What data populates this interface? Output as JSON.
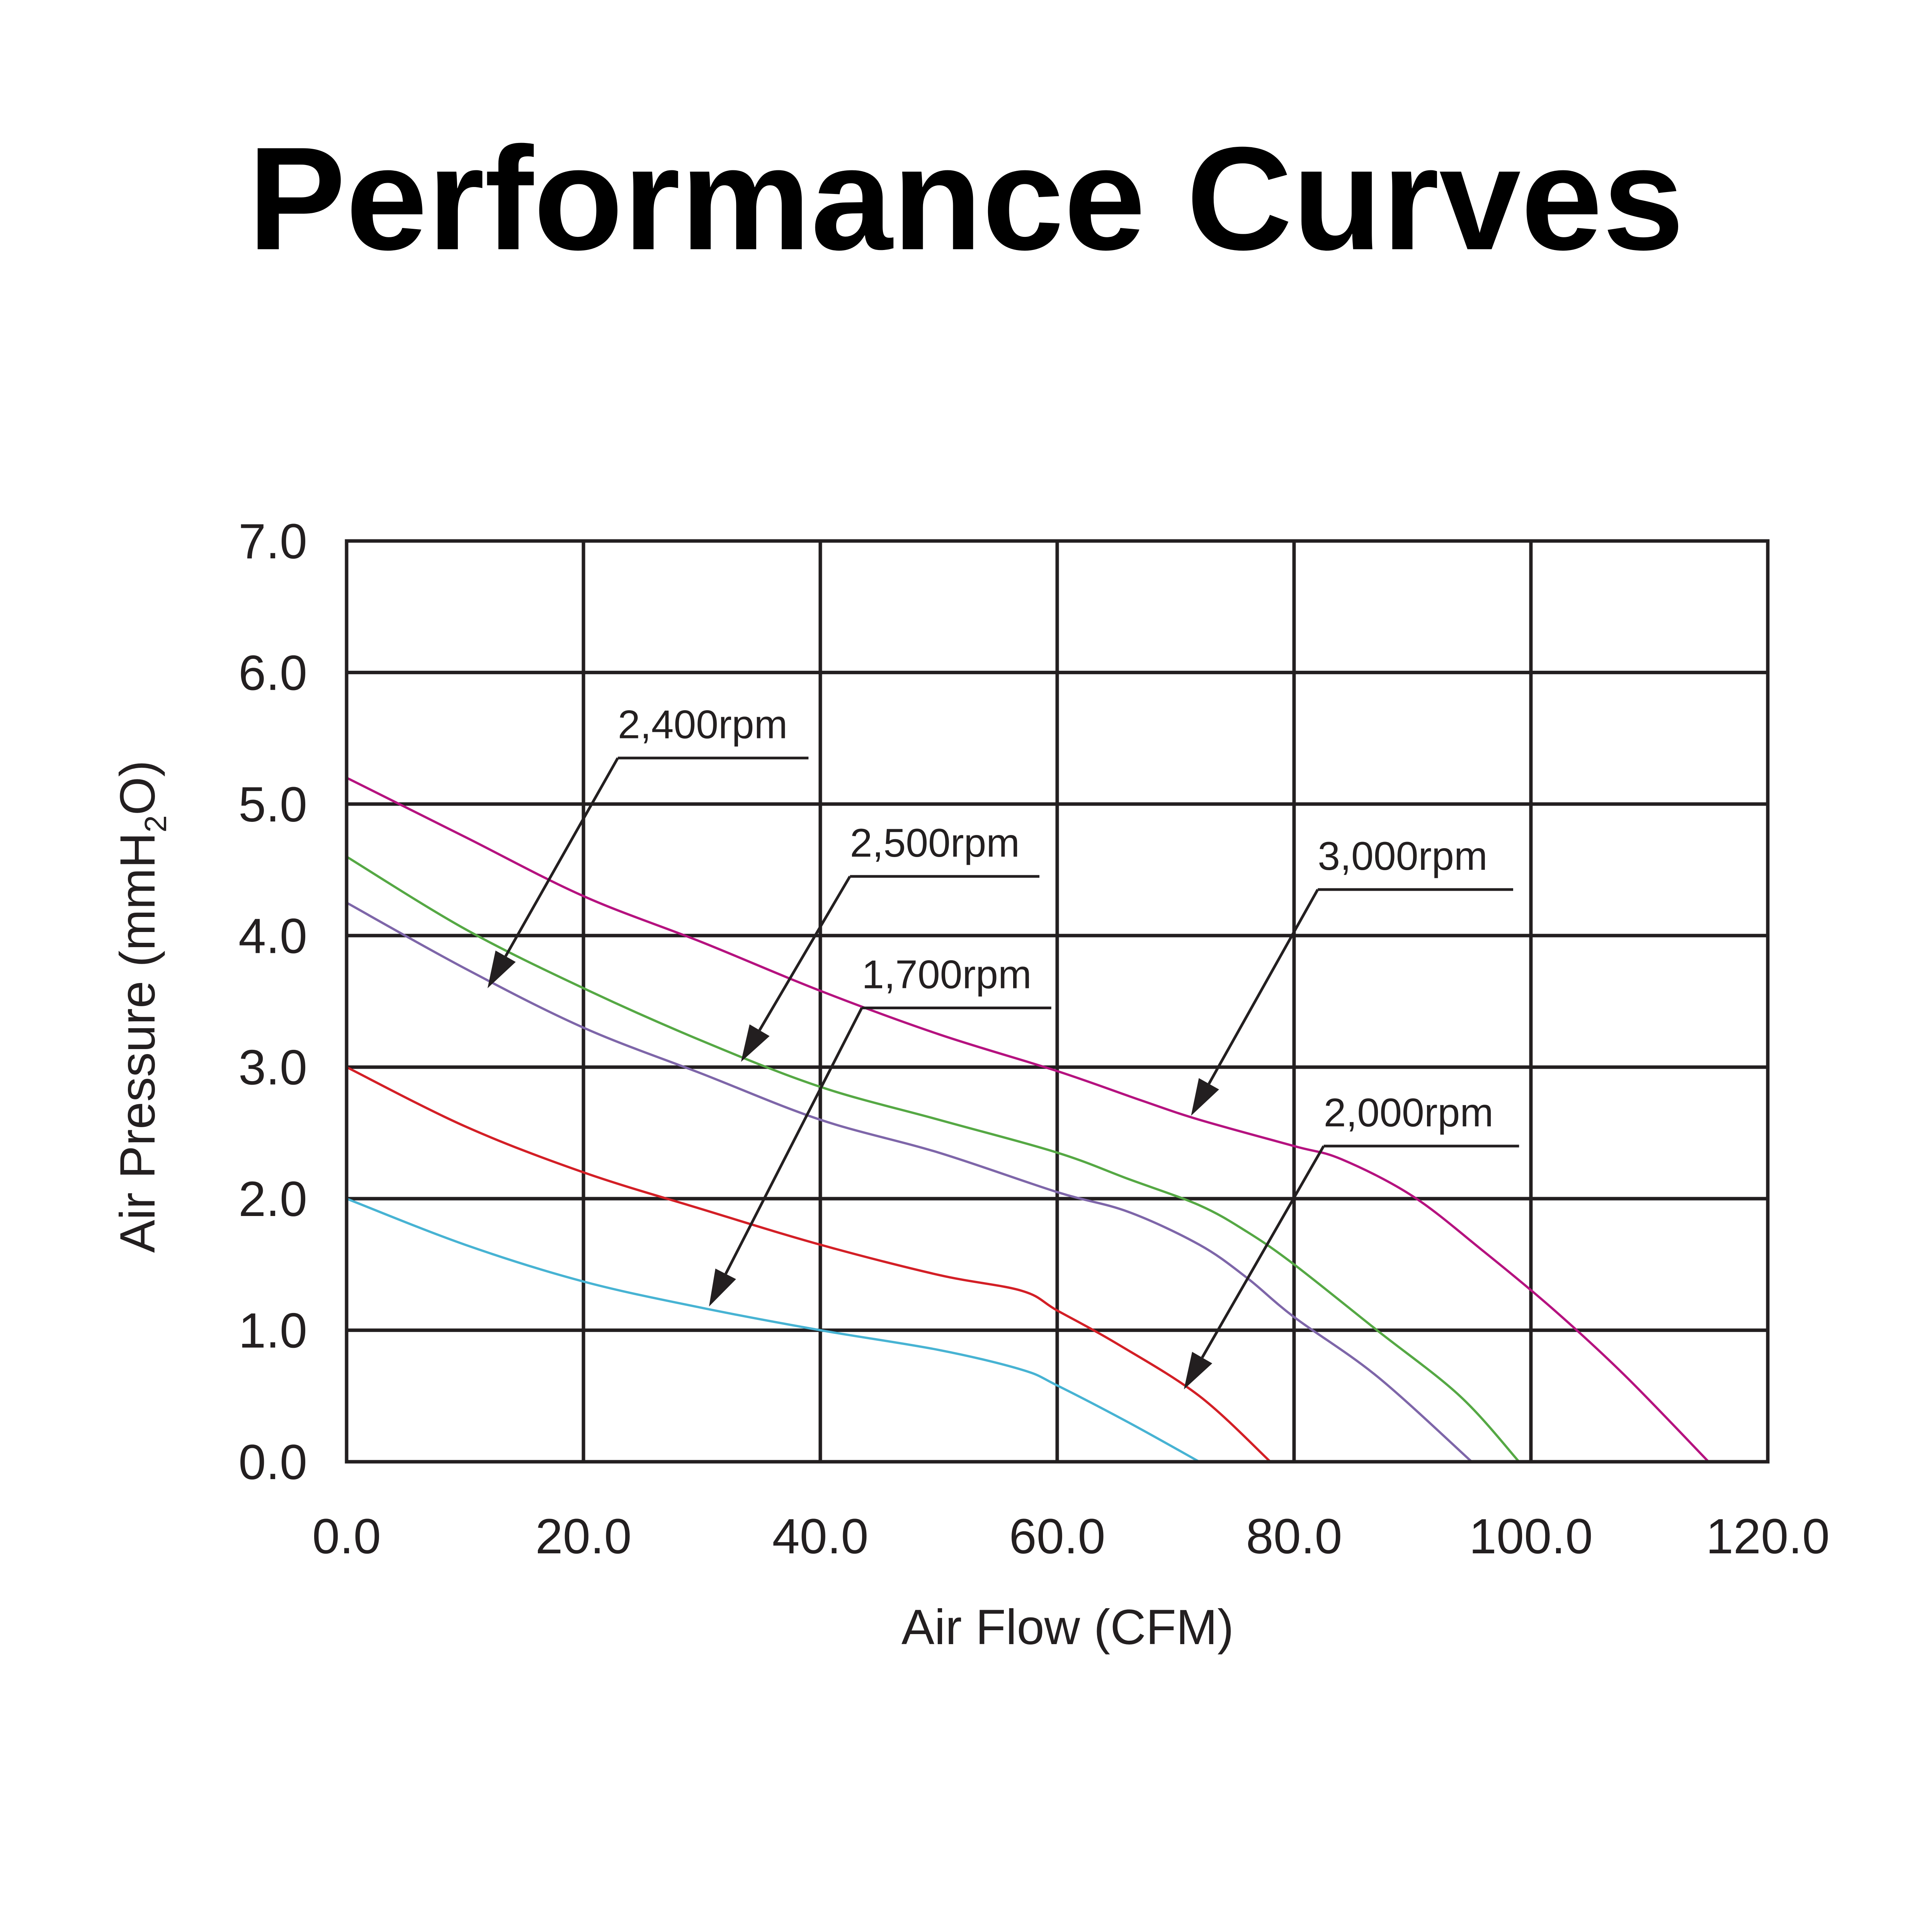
{
  "chart_data": {
    "type": "line",
    "title": "Performance Curves",
    "xlabel": "Air Flow (CFM)",
    "ylabel": {
      "prefix": "Air Pressure (mmH",
      "subscript": "2",
      "suffix": "O)"
    },
    "xlim": [
      0,
      120
    ],
    "ylim": [
      0,
      7
    ],
    "grid": true,
    "x_ticks": [
      {
        "value": 0,
        "label": "0.0"
      },
      {
        "value": 20,
        "label": "20.0"
      },
      {
        "value": 40,
        "label": "40.0"
      },
      {
        "value": 60,
        "label": "60.0"
      },
      {
        "value": 80,
        "label": "80.0"
      },
      {
        "value": 100,
        "label": "100.0"
      },
      {
        "value": 120,
        "label": "120.0"
      }
    ],
    "y_ticks": [
      {
        "value": 0,
        "label": "0.0"
      },
      {
        "value": 1,
        "label": "1.0"
      },
      {
        "value": 2,
        "label": "2.0"
      },
      {
        "value": 3,
        "label": "3.0"
      },
      {
        "value": 4,
        "label": "4.0"
      },
      {
        "value": 5,
        "label": "5.0"
      },
      {
        "value": 6,
        "label": "6.0"
      },
      {
        "value": 7,
        "label": "7.0"
      }
    ],
    "series": [
      {
        "name": "3,000rpm",
        "color": "#b5127f",
        "points": [
          [
            0,
            5.2
          ],
          [
            10,
            4.75
          ],
          [
            20,
            4.3
          ],
          [
            30,
            3.95
          ],
          [
            40,
            3.58
          ],
          [
            50,
            3.25
          ],
          [
            60,
            2.97
          ],
          [
            67,
            2.75
          ],
          [
            72,
            2.6
          ],
          [
            80,
            2.4
          ],
          [
            84,
            2.3
          ],
          [
            90,
            2.02
          ],
          [
            96,
            1.6
          ],
          [
            102,
            1.15
          ],
          [
            108,
            0.65
          ],
          [
            115,
            0.0
          ]
        ]
      },
      {
        "name": "2,500rpm",
        "color": "#55a844",
        "points": [
          [
            0,
            4.6
          ],
          [
            10,
            4.05
          ],
          [
            20,
            3.6
          ],
          [
            30,
            3.2
          ],
          [
            40,
            2.85
          ],
          [
            50,
            2.6
          ],
          [
            60,
            2.35
          ],
          [
            66,
            2.15
          ],
          [
            72,
            1.95
          ],
          [
            76,
            1.75
          ],
          [
            80,
            1.5
          ],
          [
            87,
            1.0
          ],
          [
            94,
            0.5
          ],
          [
            99,
            0.0
          ]
        ]
      },
      {
        "name": "2,400rpm",
        "color": "#7e66a9",
        "points": [
          [
            0,
            4.25
          ],
          [
            10,
            3.75
          ],
          [
            20,
            3.3
          ],
          [
            30,
            2.95
          ],
          [
            40,
            2.6
          ],
          [
            50,
            2.35
          ],
          [
            60,
            2.05
          ],
          [
            66,
            1.9
          ],
          [
            72,
            1.65
          ],
          [
            76,
            1.4
          ],
          [
            80,
            1.1
          ],
          [
            87,
            0.65
          ],
          [
            95,
            0.0
          ]
        ]
      },
      {
        "name": "2,000rpm",
        "color": "#d31f26",
        "points": [
          [
            0,
            3.0
          ],
          [
            10,
            2.55
          ],
          [
            20,
            2.2
          ],
          [
            30,
            1.92
          ],
          [
            40,
            1.65
          ],
          [
            50,
            1.42
          ],
          [
            57,
            1.3
          ],
          [
            60,
            1.15
          ],
          [
            65,
            0.9
          ],
          [
            72,
            0.5
          ],
          [
            78,
            0.0
          ]
        ]
      },
      {
        "name": "1,700rpm",
        "color": "#47b3d3",
        "points": [
          [
            0,
            2.0
          ],
          [
            10,
            1.65
          ],
          [
            20,
            1.37
          ],
          [
            30,
            1.17
          ],
          [
            40,
            1.0
          ],
          [
            50,
            0.85
          ],
          [
            57,
            0.7
          ],
          [
            60,
            0.58
          ],
          [
            66,
            0.3
          ],
          [
            72,
            0.0
          ]
        ]
      }
    ],
    "annotations": [
      {
        "text": "2,400rpm",
        "series": "2,400rpm",
        "text_xy": [
          22.9,
          5.5
        ],
        "elbow": [
          22.9,
          5.35
        ],
        "end": [
          39,
          5.35
        ],
        "arrow": [
          11.9,
          3.6
        ]
      },
      {
        "text": "2,500rpm",
        "series": "2,500rpm",
        "text_xy": [
          42.5,
          4.6
        ],
        "elbow": [
          42.5,
          4.45
        ],
        "end": [
          58.5,
          4.45
        ],
        "arrow": [
          33.3,
          3.04
        ]
      },
      {
        "text": "1,700rpm",
        "series": "1,700rpm",
        "text_xy": [
          43.5,
          3.6
        ],
        "elbow": [
          43.5,
          3.45
        ],
        "end": [
          59.5,
          3.45
        ],
        "arrow": [
          30.6,
          1.18
        ]
      },
      {
        "text": "3,000rpm",
        "series": "3,000rpm",
        "text_xy": [
          82,
          4.5
        ],
        "elbow": [
          82,
          4.35
        ],
        "end": [
          98.5,
          4.35
        ],
        "arrow": [
          71.3,
          2.63
        ]
      },
      {
        "text": "2,000rpm",
        "series": "2,000rpm",
        "text_xy": [
          82.5,
          2.55
        ],
        "elbow": [
          82.5,
          2.4
        ],
        "end": [
          99,
          2.4
        ],
        "arrow": [
          70.7,
          0.55
        ]
      }
    ]
  }
}
